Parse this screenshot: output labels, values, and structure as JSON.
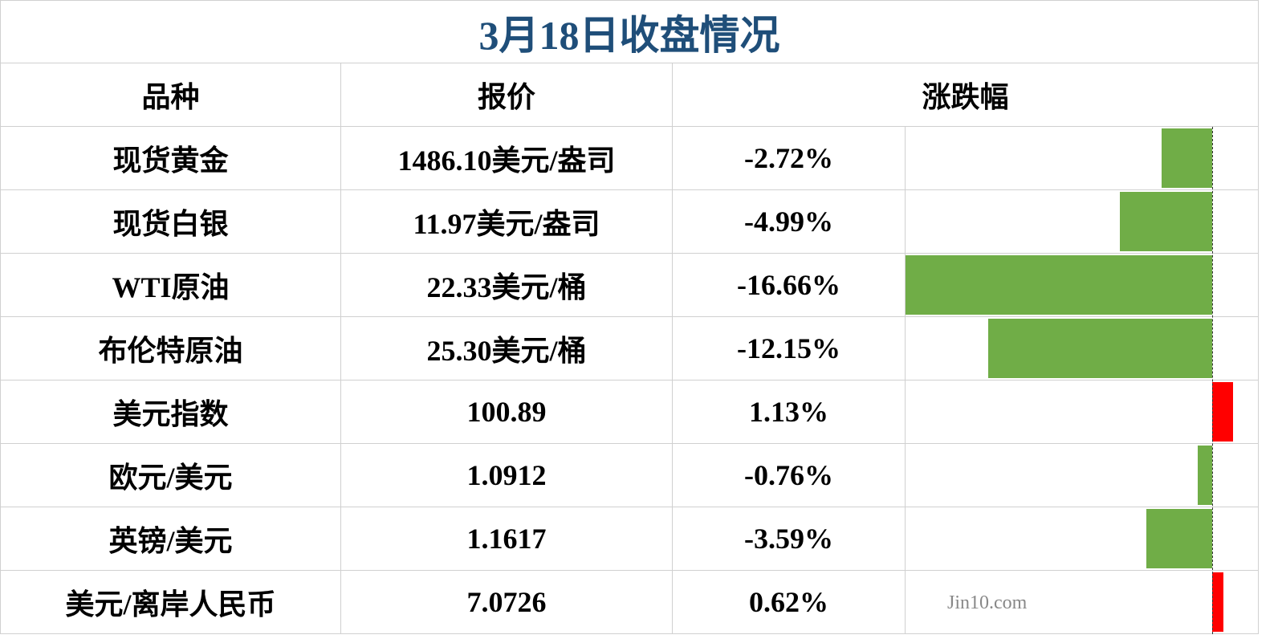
{
  "title": "3月18日收盘情况",
  "table": {
    "headers": [
      "品种",
      "报价",
      "涨跌幅"
    ],
    "rows": [
      [
        "现货黄金",
        "1486.10美元/盎司"
      ],
      [
        "现货白银",
        "11.97美元/盎司"
      ],
      [
        "WTI原油",
        "22.33美元/桶"
      ],
      [
        "布伦特原油",
        "25.30美元/桶"
      ],
      [
        "美元指数",
        "100.89"
      ],
      [
        "欧元/美元",
        "1.0912"
      ],
      [
        "英镑/美元",
        "1.1617"
      ],
      [
        "美元/离岸人民币",
        "7.0726"
      ]
    ],
    "change": {
      "values": [
        -2.72,
        -4.99,
        -16.66,
        -12.15,
        1.13,
        -0.76,
        -3.59,
        0.62
      ],
      "value_labels": [
        "-2.72%",
        "-4.99%",
        "-16.66%",
        "-12.15%",
        "1.13%",
        "-0.76%",
        "-3.59%",
        "0.62%"
      ],
      "color_down": "#70ad47",
      "color_up": "#ff0000",
      "xlim": [
        -16.66,
        2.54
      ]
    }
  },
  "watermark": "Jin10.com"
}
